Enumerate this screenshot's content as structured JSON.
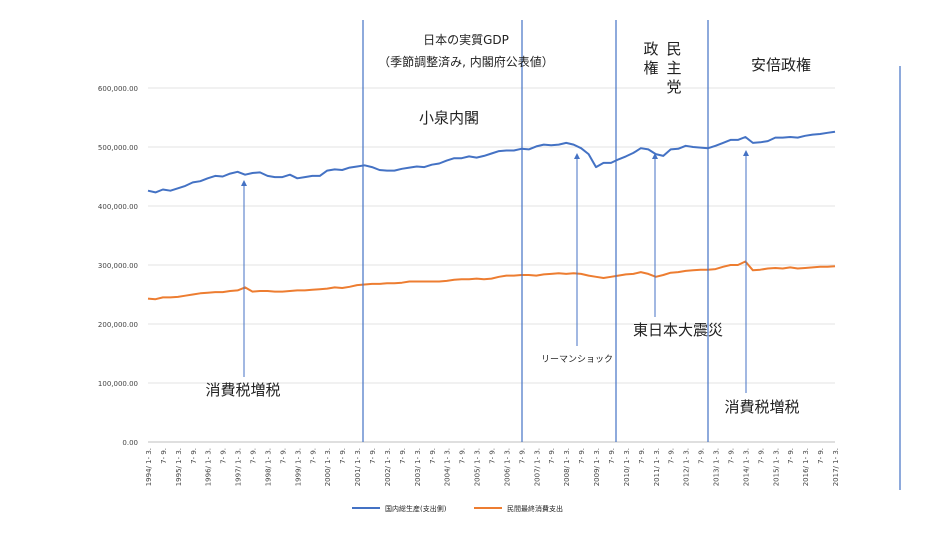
{
  "chart_data": {
    "type": "line",
    "title": "日本の実質GDP",
    "subtitle": "（季節調整済み, 内閣府公表値）",
    "ylim": [
      0,
      600000
    ],
    "y_ticks": [
      "0.00",
      "100,000.00",
      "200,000.00",
      "300,000.00",
      "400,000.00",
      "500,000.00",
      "600,000.00"
    ],
    "grid": true,
    "legend_position": "bottom",
    "x_labels": [
      "1994/ 1- 3.",
      "7- 9.",
      "1995/ 1- 3.",
      "7- 9.",
      "1996/ 1- 3.",
      "7- 9.",
      "1997/ 1- 3.",
      "7- 9.",
      "1998/ 1- 3.",
      "7- 9.",
      "1999/ 1- 3.",
      "7- 9.",
      "2000/ 1- 3.",
      "7- 9.",
      "2001/ 1- 3.",
      "7- 9.",
      "2002/ 1- 3.",
      "7- 9.",
      "2003/ 1- 3.",
      "7- 9.",
      "2004/ 1- 3.",
      "7- 9.",
      "2005/ 1- 3.",
      "7- 9.",
      "2006/ 1- 3.",
      "7- 9.",
      "2007/ 1- 3.",
      "7- 9.",
      "2008/ 1- 3.",
      "7- 9.",
      "2009/ 1- 3.",
      "7- 9.",
      "2010/ 1- 3.",
      "7- 9.",
      "2011/ 1- 3.",
      "7- 9.",
      "2012/ 1- 3.",
      "7- 9.",
      "2013/ 1- 3.",
      "7- 9.",
      "2014/ 1- 3.",
      "7- 9.",
      "2015/ 1- 3.",
      "7- 9.",
      "2016/ 1- 3.",
      "7- 9.",
      "2017/ 1- 3."
    ],
    "series": [
      {
        "name": "国内総生産(支出側)",
        "color": "#4472C4",
        "values": [
          426000,
          423000,
          428000,
          426000,
          430000,
          434000,
          440000,
          442000,
          447000,
          451000,
          450000,
          455000,
          458000,
          453000,
          456000,
          457000,
          451000,
          449000,
          449000,
          453000,
          447000,
          449000,
          451000,
          451000,
          460000,
          462000,
          461000,
          465000,
          467000,
          469000,
          466000,
          461000,
          460000,
          460000,
          463000,
          465000,
          467000,
          466000,
          470000,
          472000,
          477000,
          481000,
          481000,
          484000,
          482000,
          485000,
          489000,
          493000,
          494000,
          494000,
          497000,
          496000,
          501000,
          504000,
          503000,
          504000,
          507000,
          504000,
          498000,
          488000,
          466000,
          473000,
          473000,
          479000,
          484000,
          490000,
          498000,
          496000,
          488000,
          485000,
          496000,
          497000,
          502000,
          500000,
          499000,
          498000,
          502000,
          507000,
          512000,
          512000,
          517000,
          507000,
          508000,
          510000,
          516000,
          516000,
          517000,
          516000,
          519000,
          521000,
          522000,
          524000,
          526000
        ]
      },
      {
        "name": "民間最終消費支出",
        "color": "#ED7D31",
        "values": [
          243000,
          242000,
          245000,
          245000,
          246000,
          248000,
          250000,
          252000,
          253000,
          254000,
          254000,
          256000,
          257000,
          262000,
          255000,
          256000,
          256000,
          255000,
          255000,
          256000,
          257000,
          257000,
          258000,
          259000,
          260000,
          262000,
          261000,
          263000,
          266000,
          267000,
          268000,
          268000,
          269000,
          269000,
          270000,
          272000,
          272000,
          272000,
          272000,
          272000,
          273000,
          275000,
          276000,
          276000,
          277000,
          276000,
          277000,
          280000,
          282000,
          282000,
          283000,
          283000,
          282000,
          284000,
          285000,
          286000,
          285000,
          286000,
          285000,
          282000,
          280000,
          278000,
          280000,
          282000,
          284000,
          285000,
          288000,
          285000,
          280000,
          283000,
          287000,
          288000,
          290000,
          291000,
          292000,
          292000,
          293000,
          297000,
          300000,
          300000,
          306000,
          291000,
          292000,
          294000,
          295000,
          294000,
          296000,
          294000,
          295000,
          296000,
          297000,
          297000,
          298000
        ]
      }
    ]
  },
  "annotations": {
    "koizumi": "小泉内閣",
    "dpj_1": "政",
    "dpj_2": "権",
    "dpj_3": "民",
    "dpj_4": "主",
    "dpj_5": "党",
    "abe": "安倍政権",
    "tax1997": "消費税増税",
    "tax2014": "消費税増税",
    "lehman": "リーマンショック",
    "earthquake": "東日本大震災"
  }
}
